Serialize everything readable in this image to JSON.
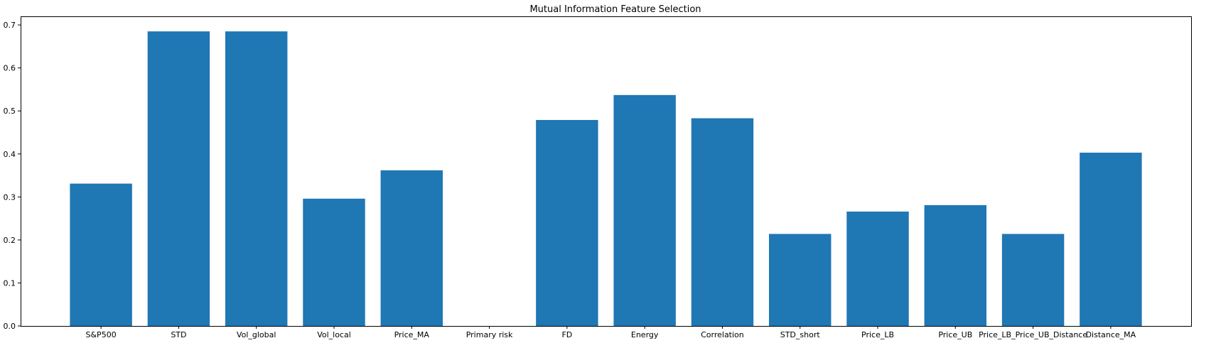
{
  "chart_data": {
    "type": "bar",
    "title": "Mutual Information Feature Selection",
    "xlabel": "",
    "ylabel": "",
    "categories": [
      "S&P500",
      "STD",
      "Vol_global",
      "Vol_local",
      "Price_MA",
      "Primary risk",
      "FD",
      "Energy",
      "Correlation",
      "STD_short",
      "Price_LB",
      "Price_UB",
      "Price_LB_Price_UB_Distance",
      "Distance_MA"
    ],
    "values": [
      0.331,
      0.685,
      0.685,
      0.296,
      0.362,
      0.0,
      0.479,
      0.537,
      0.483,
      0.214,
      0.266,
      0.281,
      0.214,
      0.403
    ],
    "ylim": [
      0,
      0.72
    ],
    "yticks": [
      0.0,
      0.1,
      0.2,
      0.3,
      0.4,
      0.5,
      0.6,
      0.7
    ],
    "ytick_labels": [
      "0.0",
      "0.1",
      "0.2",
      "0.3",
      "0.4",
      "0.5",
      "0.6",
      "0.7"
    ],
    "bar_color": "#1f77b4",
    "grid": false,
    "legend": "none"
  }
}
